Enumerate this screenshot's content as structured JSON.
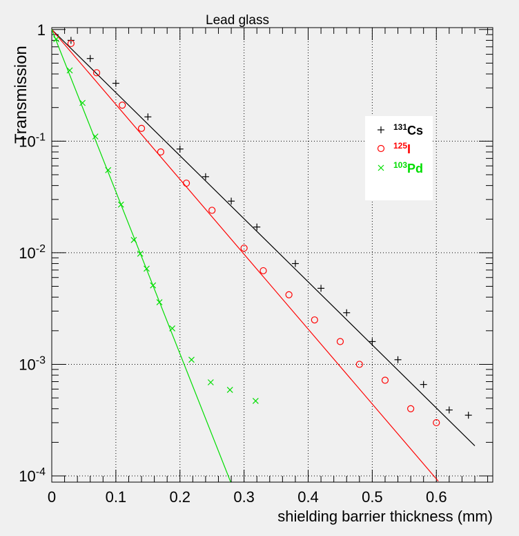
{
  "chart_data": {
    "type": "scatter",
    "title": "Lead glass",
    "xlabel": "shielding barrier thickness (mm)",
    "ylabel": "Transmission",
    "xlim": [
      0,
      0.688
    ],
    "ylim": [
      8.8e-05,
      1.04
    ],
    "yscale": "log",
    "grid": true,
    "legend_position": "top-right",
    "x_ticks": [
      "0",
      "0.1",
      "0.2",
      "0.3",
      "0.4",
      "0.5",
      "0.6"
    ],
    "x_tick_values": [
      0,
      0.1,
      0.2,
      0.3,
      0.4,
      0.5,
      0.6
    ],
    "y_ticks": [
      {
        "value": 1,
        "base": "1",
        "exp": ""
      },
      {
        "value": 0.1,
        "base": "10",
        "exp": "-1"
      },
      {
        "value": 0.01,
        "base": "10",
        "exp": "-2"
      },
      {
        "value": 0.001,
        "base": "10",
        "exp": "-3"
      },
      {
        "value": 0.0001,
        "base": "10",
        "exp": "-4"
      }
    ],
    "series": [
      {
        "name_sup": "131",
        "name": "Cs",
        "color": "#000000",
        "marker": "plus",
        "x": [
          0.03,
          0.06,
          0.1,
          0.15,
          0.2,
          0.24,
          0.28,
          0.32,
          0.38,
          0.42,
          0.46,
          0.5,
          0.54,
          0.58,
          0.62,
          0.65
        ],
        "y": [
          0.8,
          0.55,
          0.33,
          0.165,
          0.085,
          0.048,
          0.029,
          0.017,
          0.008,
          0.0048,
          0.0029,
          0.0016,
          0.0011,
          0.00066,
          0.00039,
          0.00035
        ],
        "fit": {
          "x": [
            0.0,
            0.66
          ],
          "y": [
            1.0,
            0.000186
          ]
        }
      },
      {
        "name_sup": "125",
        "name": "I",
        "color": "#ff0000",
        "marker": "circle",
        "x": [
          0.03,
          0.07,
          0.11,
          0.14,
          0.17,
          0.21,
          0.25,
          0.3,
          0.33,
          0.37,
          0.41,
          0.45,
          0.48,
          0.52,
          0.56,
          0.6
        ],
        "y": [
          0.75,
          0.41,
          0.21,
          0.13,
          0.08,
          0.042,
          0.024,
          0.011,
          0.0069,
          0.0042,
          0.0025,
          0.0016,
          0.001,
          0.00072,
          0.0004,
          0.0003
        ],
        "fit": {
          "x": [
            0.0,
            0.603
          ],
          "y": [
            1.0,
            8.98e-05
          ]
        }
      },
      {
        "name_sup": "103",
        "name": "Pd",
        "color": "#00dd00",
        "marker": "cross",
        "x": [
          0.007,
          0.028,
          0.048,
          0.068,
          0.088,
          0.108,
          0.128,
          0.138,
          0.148,
          0.158,
          0.168,
          0.188,
          0.218,
          0.248,
          0.278,
          0.318
        ],
        "y": [
          0.82,
          0.43,
          0.22,
          0.11,
          0.055,
          0.027,
          0.013,
          0.0098,
          0.0072,
          0.0051,
          0.0036,
          0.0021,
          0.0011,
          0.00069,
          0.00059,
          0.00047
        ],
        "fit": {
          "x": [
            0.0,
            0.279
          ],
          "y": [
            1.0,
            8.85e-05
          ]
        }
      }
    ]
  }
}
